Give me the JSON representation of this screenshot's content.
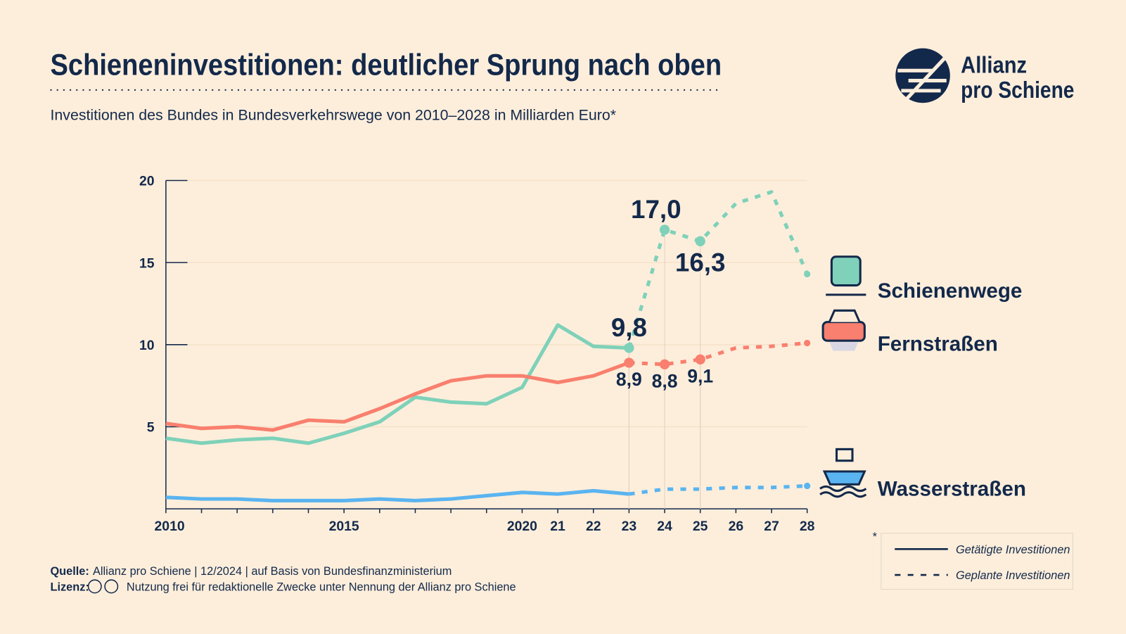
{
  "chart_data": {
    "type": "line",
    "title": "Schieneninvestitionen: deutlicher Sprung nach oben",
    "subtitle": "Investitionen des Bundes in Bundesverkehrswege von 2010–2028 in Milliarden Euro*",
    "logo": [
      "Allianz",
      "pro Schiene"
    ],
    "source_label": "Quelle:",
    "source": "Allianz pro Schiene | 12/2024 | auf Basis von Bundesfinanzministerium",
    "license_label": "Lizenz:",
    "license": "Nutzung frei für redaktionelle Zwecke unter Nennung der Allianz pro Schiene",
    "footnote_mark": "*",
    "categories": [
      "2010",
      null,
      null,
      null,
      null,
      "2015",
      null,
      null,
      null,
      null,
      "2020",
      "21",
      "22",
      "23",
      "24",
      "25",
      "26",
      "27",
      "28"
    ],
    "ylim": [
      0,
      20
    ],
    "yticks": [
      5,
      10,
      15,
      20
    ],
    "grid": true,
    "styles": [
      {
        "name": "Getätigte Investitionen",
        "dash": false
      },
      {
        "name": "Geplante Investitionen",
        "dash": true
      }
    ],
    "series": [
      {
        "name": "Schienenwege",
        "color": "#7fd1b9",
        "values": [
          4.3,
          4.0,
          4.2,
          4.3,
          4.0,
          4.6,
          5.3,
          6.8,
          6.5,
          6.4,
          7.4,
          11.2,
          9.9,
          9.8,
          null,
          null,
          null,
          null,
          null
        ],
        "value_labels": [
          null,
          null,
          null,
          null,
          null,
          null,
          null,
          null,
          null,
          null,
          null,
          null,
          null,
          "9,8",
          null,
          null,
          null,
          null,
          null
        ],
        "planned_values": [
          null,
          null,
          null,
          null,
          null,
          null,
          null,
          null,
          null,
          null,
          null,
          null,
          null,
          9.8,
          17.0,
          16.3,
          18.6,
          19.3,
          14.3
        ],
        "planned_value_labels": [
          null,
          null,
          null,
          null,
          null,
          null,
          null,
          null,
          null,
          null,
          null,
          null,
          null,
          null,
          "17,0",
          "16,3",
          null,
          null,
          null
        ]
      },
      {
        "name": "Fernstraßen",
        "color": "#f97f6e",
        "values": [
          5.2,
          4.9,
          5.0,
          4.8,
          5.4,
          5.3,
          6.1,
          7.0,
          7.8,
          8.1,
          8.1,
          7.7,
          8.1,
          8.9,
          null,
          null,
          null,
          null,
          null
        ],
        "value_labels": [
          null,
          null,
          null,
          null,
          null,
          null,
          null,
          null,
          null,
          null,
          null,
          null,
          null,
          "8,9",
          null,
          null,
          null,
          null,
          null
        ],
        "planned_values": [
          null,
          null,
          null,
          null,
          null,
          null,
          null,
          null,
          null,
          null,
          null,
          null,
          null,
          8.9,
          8.8,
          9.1,
          9.8,
          9.9,
          10.1
        ],
        "planned_value_labels": [
          null,
          null,
          null,
          null,
          null,
          null,
          null,
          null,
          null,
          null,
          null,
          null,
          null,
          null,
          "8,8",
          "9,1",
          null,
          null,
          null
        ]
      },
      {
        "name": "Wasserstraßen",
        "color": "#5ab4f0",
        "values": [
          0.7,
          0.6,
          0.6,
          0.5,
          0.5,
          0.5,
          0.6,
          0.5,
          0.6,
          0.8,
          1.0,
          0.9,
          1.1,
          0.9,
          null,
          null,
          null,
          null,
          null
        ],
        "planned_values": [
          null,
          null,
          null,
          null,
          null,
          null,
          null,
          null,
          null,
          null,
          null,
          null,
          null,
          0.9,
          1.2,
          1.2,
          1.3,
          1.3,
          1.4
        ]
      }
    ]
  }
}
